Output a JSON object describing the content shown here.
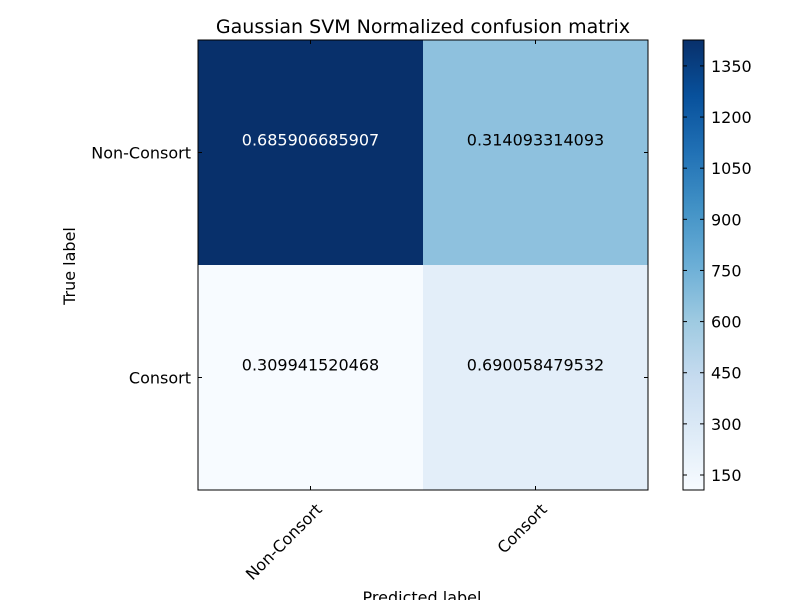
{
  "chart_data": {
    "type": "heatmap",
    "title": "Gaussian SVM Normalized confusion matrix",
    "xlabel": "Predicted label",
    "ylabel": "True label",
    "x_categories": [
      "Non-Consort",
      "Consort"
    ],
    "y_categories": [
      "Non-Consort",
      "Consort"
    ],
    "cell_labels": [
      [
        "0.685906685907",
        "0.314093314093"
      ],
      [
        "0.309941520468",
        "0.690058479532"
      ]
    ],
    "counts": [
      [
        1426,
        653
      ],
      [
        106,
        236
      ]
    ],
    "colorbar": {
      "colormap": "Blues",
      "range": [
        106,
        1426
      ],
      "ticks": [
        150,
        300,
        450,
        600,
        750,
        900,
        1050,
        1200,
        1350
      ]
    },
    "colors": {
      "text_dark": "#000000",
      "text_light": "#ffffff"
    }
  }
}
